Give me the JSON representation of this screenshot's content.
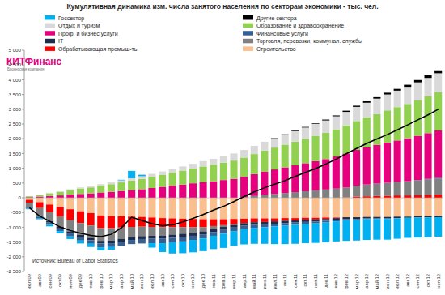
{
  "chart_data": {
    "type": "bar",
    "title": "Кумулятивная динамика изм. числа занятого населения по секторам экономики - тыс. чел.",
    "annotations": [
      "Источник: Bureau of Labor Statistics"
    ],
    "logo": {
      "name": "КИТФинанс",
      "subtitle": "Брокерская компания"
    },
    "stacked": true,
    "grid": false,
    "legend": "top",
    "ylim": [
      -2500,
      5000
    ],
    "yticks": [
      {
        "value": -2500,
        "label": "-2 500"
      },
      {
        "value": -2000,
        "label": "-2 000"
      },
      {
        "value": -1500,
        "label": "-1 500"
      },
      {
        "value": -1000,
        "label": "-1 000"
      },
      -500,
      0,
      500,
      {
        "value": 1000,
        "label": "1 000"
      },
      {
        "value": 1500,
        "label": "1 500"
      },
      {
        "value": 2000,
        "label": "2 000"
      },
      {
        "value": 2500,
        "label": "2 500"
      },
      {
        "value": 3000,
        "label": "3 000"
      },
      {
        "value": 3500,
        "label": "3 500"
      },
      {
        "value": 4000,
        "label": "4 000"
      },
      {
        "value": 4500,
        "label": "4 500"
      },
      {
        "value": 5000,
        "label": "5 000"
      }
    ],
    "categories": [
      "июл.09",
      "авг.09",
      "сен.09",
      "окт.09",
      "ноя.09",
      "дек.09",
      "янв.10",
      "фев.10",
      "мар.10",
      "апр.10",
      "май.10",
      "июн.10",
      "июл.10",
      "авг.10",
      "сен.10",
      "окт.10",
      "ноя.10",
      "дек.10",
      "янв.11",
      "фев.11",
      "мар.11",
      "апр.11",
      "май.11",
      "июн.11",
      "июл.11",
      "авг.11",
      "сен.11",
      "окт.11",
      "ноя.11",
      "дек.11",
      "янв.12",
      "фев.12",
      "мар.12",
      "апр.12",
      "май.12",
      "июн.12",
      "июл.12",
      "авг.12",
      "сен.12",
      "окт.12",
      "ноя.12"
    ],
    "series": [
      {
        "name": "Госсектор",
        "color": "#00b0f0",
        "values": [
          -20,
          -40,
          -60,
          -80,
          -90,
          -100,
          -110,
          -100,
          -90,
          20,
          250,
          50,
          -150,
          -300,
          -380,
          -400,
          -420,
          -430,
          -450,
          -480,
          -500,
          -520,
          -540,
          -560,
          -600,
          -620,
          -640,
          -650,
          -660,
          -670,
          -680,
          -690,
          -690,
          -700,
          -700,
          -700,
          -690,
          -680,
          -680,
          -670,
          -660
        ]
      },
      {
        "name": "Другие сектора",
        "color": "#000000",
        "values": [
          0,
          0,
          0,
          0,
          0,
          0,
          0,
          0,
          0,
          0,
          0,
          0,
          0,
          0,
          0,
          0,
          0,
          0,
          0,
          0,
          0,
          0,
          0,
          0,
          10,
          10,
          20,
          20,
          20,
          30,
          30,
          40,
          40,
          50,
          50,
          60,
          60,
          70,
          80,
          90,
          100
        ]
      },
      {
        "name": "Отдых и туризм",
        "color": "#d9d9d9",
        "values": [
          0,
          10,
          20,
          20,
          30,
          40,
          40,
          50,
          60,
          70,
          80,
          90,
          100,
          110,
          120,
          140,
          160,
          180,
          200,
          220,
          240,
          260,
          280,
          300,
          320,
          340,
          360,
          380,
          400,
          420,
          440,
          460,
          480,
          500,
          520,
          540,
          560,
          580,
          600,
          620,
          640
        ]
      },
      {
        "name": "Образование и здравоохранение",
        "color": "#92d050",
        "values": [
          30,
          60,
          90,
          120,
          150,
          180,
          200,
          230,
          260,
          290,
          320,
          350,
          380,
          410,
          440,
          470,
          500,
          530,
          560,
          590,
          620,
          650,
          680,
          710,
          740,
          770,
          800,
          830,
          860,
          890,
          920,
          950,
          980,
          1010,
          1050,
          1090,
          1130,
          1170,
          1210,
          1250,
          1300
        ]
      },
      {
        "name": "Проф. и бизнес услуги",
        "color": "#e6007e",
        "values": [
          20,
          40,
          60,
          80,
          110,
          130,
          150,
          180,
          200,
          230,
          260,
          290,
          330,
          370,
          410,
          450,
          490,
          530,
          560,
          600,
          640,
          690,
          740,
          790,
          830,
          870,
          910,
          950,
          990,
          1030,
          1090,
          1150,
          1210,
          1260,
          1310,
          1360,
          1400,
          1450,
          1500,
          1550,
          1600
        ]
      },
      {
        "name": "Финансовые услуги",
        "color": "#366092",
        "values": [
          -30,
          -50,
          -70,
          -90,
          -100,
          -110,
          -120,
          -130,
          -130,
          -140,
          -140,
          -150,
          -150,
          -150,
          -150,
          -150,
          -140,
          -140,
          -130,
          -130,
          -120,
          -110,
          -100,
          -100,
          -90,
          -90,
          -80,
          -70,
          -60,
          -60,
          -50,
          -50,
          -40,
          -30,
          -20,
          -20,
          -10,
          0,
          10,
          20,
          30
        ]
      },
      {
        "name": "IT",
        "color": "#1f2d4d",
        "values": [
          -20,
          -40,
          -50,
          -60,
          -70,
          -80,
          -80,
          -90,
          -90,
          -100,
          -100,
          -100,
          -100,
          -110,
          -110,
          -110,
          -110,
          -100,
          -100,
          -100,
          -90,
          -90,
          -90,
          -80,
          -80,
          -80,
          -70,
          -70,
          -70,
          -60,
          -60,
          -60,
          -60,
          -50,
          -50,
          -50,
          -50,
          -40,
          -40,
          -40,
          -40
        ]
      },
      {
        "name": "Торговля, перевозки, коммунал. службы",
        "color": "#808080",
        "values": [
          -150,
          -250,
          -300,
          -350,
          -380,
          -400,
          -420,
          -430,
          -420,
          -380,
          -340,
          -320,
          -300,
          -280,
          -250,
          -220,
          -180,
          -140,
          -100,
          -60,
          -20,
          20,
          60,
          100,
          130,
          160,
          190,
          220,
          250,
          280,
          310,
          340,
          370,
          400,
          420,
          440,
          460,
          480,
          500,
          520,
          540
        ]
      },
      {
        "name": "Обрабатывающая промыш-ть",
        "color": "#ff0000",
        "values": [
          -100,
          -200,
          -260,
          -320,
          -370,
          -400,
          -420,
          -430,
          -410,
          -380,
          -350,
          -330,
          -320,
          -310,
          -300,
          -290,
          -280,
          -270,
          -230,
          -200,
          -180,
          -150,
          -130,
          -120,
          -100,
          -90,
          -80,
          -70,
          -60,
          -50,
          -20,
          10,
          40,
          50,
          60,
          70,
          80,
          80,
          90,
          100,
          110
        ]
      },
      {
        "name": "Строительство",
        "color": "#fabf8f",
        "values": [
          -70,
          -150,
          -230,
          -310,
          -390,
          -460,
          -520,
          -600,
          -620,
          -630,
          -640,
          -650,
          -670,
          -690,
          -700,
          -710,
          -720,
          -730,
          -730,
          -730,
          -720,
          -710,
          -700,
          -700,
          -700,
          -690,
          -690,
          -680,
          -680,
          -670,
          -670,
          -660,
          -660,
          -650,
          -650,
          -650,
          -640,
          -640,
          -630,
          -630,
          -620
        ]
      },
      {
        "type": "line",
        "color": "#000000",
        "values": [
          -340,
          -620,
          -800,
          -990,
          -1110,
          -1200,
          -1280,
          -1320,
          -1240,
          -1020,
          -660,
          -770,
          -880,
          -950,
          -920,
          -820,
          -700,
          -570,
          -420,
          -290,
          -130,
          40,
          200,
          340,
          460,
          580,
          720,
          860,
          990,
          1140,
          1310,
          1490,
          1670,
          1840,
          1990,
          2140,
          2300,
          2470,
          2640,
          2810,
          3000
        ]
      }
    ]
  }
}
